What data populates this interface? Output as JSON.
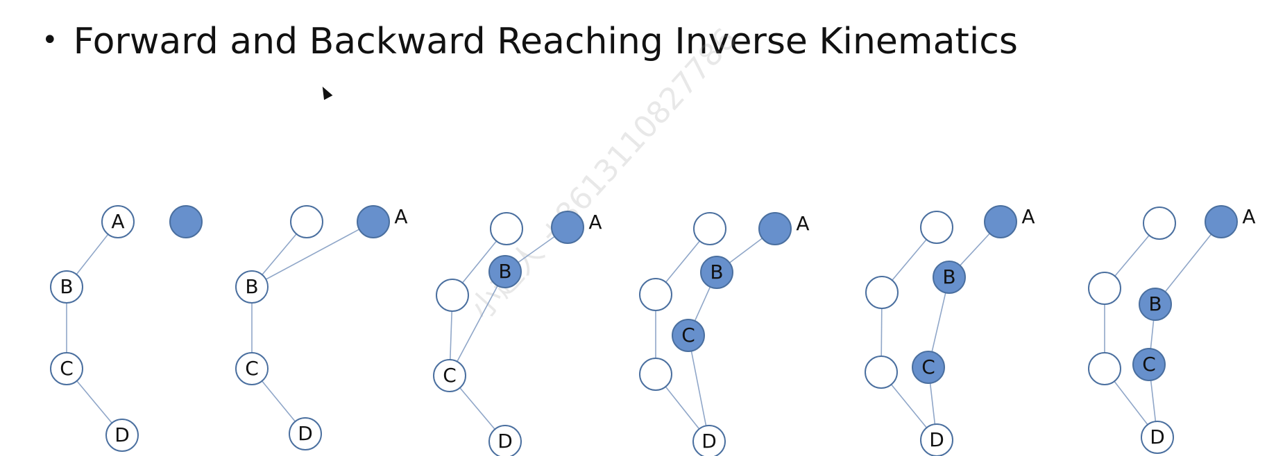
{
  "slide": {
    "bullet": "•",
    "title": "Forward and Backward Reaching Inverse Kinematics"
  },
  "watermark": "小超人 +8613110827786",
  "colors": {
    "filled": "#6790cc",
    "stroke": "#4a6f9f",
    "empty": "#ffffff",
    "line": "#8fa6c8",
    "label": "#111111"
  },
  "panels": [
    {
      "nodes": [
        {
          "id": "A",
          "label": "A",
          "filled": false,
          "label_outside": false
        },
        {
          "id": "B",
          "label": "B",
          "filled": false,
          "label_outside": false
        },
        {
          "id": "C",
          "label": "C",
          "filled": false,
          "label_outside": false
        },
        {
          "id": "D",
          "label": "D",
          "filled": false,
          "label_outside": false
        },
        {
          "id": "T",
          "label": "",
          "filled": true,
          "label_outside": false
        }
      ],
      "edges": [
        [
          "A",
          "B"
        ],
        [
          "B",
          "C"
        ],
        [
          "C",
          "D"
        ]
      ]
    },
    {
      "nodes": [
        {
          "id": "O",
          "label": "",
          "filled": false,
          "label_outside": false
        },
        {
          "id": "A",
          "label": "A",
          "filled": true,
          "label_outside": true
        },
        {
          "id": "B",
          "label": "B",
          "filled": false,
          "label_outside": false
        },
        {
          "id": "C",
          "label": "C",
          "filled": false,
          "label_outside": false
        },
        {
          "id": "D",
          "label": "D",
          "filled": false,
          "label_outside": false
        }
      ],
      "edges": [
        [
          "O",
          "B"
        ],
        [
          "A",
          "B"
        ],
        [
          "B",
          "C"
        ],
        [
          "C",
          "D"
        ]
      ]
    },
    {
      "nodes": [
        {
          "id": "O",
          "label": "",
          "filled": false,
          "label_outside": false
        },
        {
          "id": "A",
          "label": "A",
          "filled": true,
          "label_outside": true
        },
        {
          "id": "B",
          "label": "B",
          "filled": true,
          "label_outside": false
        },
        {
          "id": "E",
          "label": "",
          "filled": false,
          "label_outside": false
        },
        {
          "id": "C",
          "label": "C",
          "filled": false,
          "label_outside": false
        },
        {
          "id": "D",
          "label": "D",
          "filled": false,
          "label_outside": false
        }
      ],
      "edges": [
        [
          "O",
          "E"
        ],
        [
          "E",
          "C"
        ],
        [
          "A",
          "B"
        ],
        [
          "B",
          "C"
        ],
        [
          "C",
          "D"
        ]
      ]
    },
    {
      "nodes": [
        {
          "id": "O",
          "label": "",
          "filled": false,
          "label_outside": false
        },
        {
          "id": "A",
          "label": "A",
          "filled": true,
          "label_outside": true
        },
        {
          "id": "B",
          "label": "B",
          "filled": true,
          "label_outside": false
        },
        {
          "id": "E",
          "label": "",
          "filled": false,
          "label_outside": false
        },
        {
          "id": "C",
          "label": "C",
          "filled": true,
          "label_outside": false
        },
        {
          "id": "F",
          "label": "",
          "filled": false,
          "label_outside": false
        },
        {
          "id": "D",
          "label": "D",
          "filled": false,
          "label_outside": false
        }
      ],
      "edges": [
        [
          "O",
          "E"
        ],
        [
          "E",
          "F"
        ],
        [
          "F",
          "D"
        ],
        [
          "A",
          "B"
        ],
        [
          "B",
          "C"
        ],
        [
          "C",
          "D"
        ]
      ]
    },
    {
      "nodes": [
        {
          "id": "O",
          "label": "",
          "filled": false,
          "label_outside": false
        },
        {
          "id": "A",
          "label": "A",
          "filled": true,
          "label_outside": true
        },
        {
          "id": "B",
          "label": "B",
          "filled": true,
          "label_outside": false
        },
        {
          "id": "E",
          "label": "",
          "filled": false,
          "label_outside": false
        },
        {
          "id": "F",
          "label": "",
          "filled": false,
          "label_outside": false
        },
        {
          "id": "C",
          "label": "C",
          "filled": true,
          "label_outside": false
        },
        {
          "id": "D",
          "label": "D",
          "filled": false,
          "label_outside": false
        }
      ],
      "edges": [
        [
          "O",
          "E"
        ],
        [
          "E",
          "F"
        ],
        [
          "F",
          "D"
        ],
        [
          "A",
          "B"
        ],
        [
          "B",
          "C"
        ],
        [
          "C",
          "D"
        ]
      ]
    },
    {
      "nodes": [
        {
          "id": "O",
          "label": "",
          "filled": false,
          "label_outside": false
        },
        {
          "id": "A",
          "label": "A",
          "filled": true,
          "label_outside": true
        },
        {
          "id": "E",
          "label": "",
          "filled": false,
          "label_outside": false
        },
        {
          "id": "B",
          "label": "B",
          "filled": true,
          "label_outside": false
        },
        {
          "id": "F",
          "label": "",
          "filled": false,
          "label_outside": false
        },
        {
          "id": "C",
          "label": "C",
          "filled": true,
          "label_outside": false
        },
        {
          "id": "D",
          "label": "D",
          "filled": false,
          "label_outside": false
        }
      ],
      "edges": [
        [
          "O",
          "E"
        ],
        [
          "E",
          "F"
        ],
        [
          "F",
          "D"
        ],
        [
          "A",
          "B"
        ],
        [
          "B",
          "C"
        ],
        [
          "C",
          "D"
        ]
      ]
    }
  ]
}
